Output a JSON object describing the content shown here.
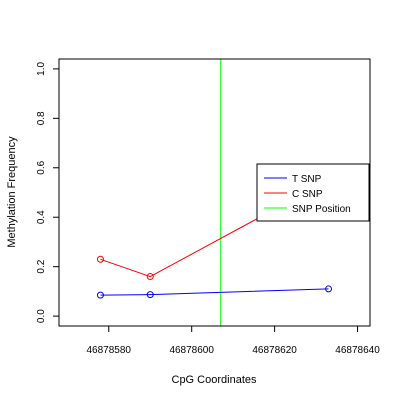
{
  "chart_data": {
    "type": "line",
    "xlabel": "CpG Coordinates",
    "ylabel": "Methylation Frequency",
    "xlim": [
      46878568,
      46878643
    ],
    "ylim": [
      -0.04,
      1.04
    ],
    "x_ticks": [
      {
        "value": 46878580,
        "label": "46878580"
      },
      {
        "value": 46878600,
        "label": "46878600"
      },
      {
        "value": 46878620,
        "label": "46878620"
      },
      {
        "value": 46878640,
        "label": "46878640"
      }
    ],
    "y_ticks": [
      {
        "value": 0.0,
        "label": "0.0"
      },
      {
        "value": 0.2,
        "label": "0.2"
      },
      {
        "value": 0.4,
        "label": "0.4"
      },
      {
        "value": 0.6,
        "label": "0.6"
      },
      {
        "value": 0.8,
        "label": "0.8"
      },
      {
        "value": 1.0,
        "label": "1.0"
      }
    ],
    "series": [
      {
        "name": "T SNP",
        "color": "#0000ff",
        "points": [
          {
            "x": 46878578,
            "y": 0.085
          },
          {
            "x": 46878590,
            "y": 0.087
          },
          {
            "x": 46878633,
            "y": 0.11
          }
        ]
      },
      {
        "name": "C SNP",
        "color": "#ff0000",
        "points": [
          {
            "x": 46878578,
            "y": 0.23
          },
          {
            "x": 46878590,
            "y": 0.16
          },
          {
            "x": 46878633,
            "y": 0.55
          }
        ]
      }
    ],
    "snp_position": {
      "name": "SNP Position",
      "x": 46878607,
      "color": "#00ff00"
    },
    "legend": {
      "placement": "right",
      "entries": [
        {
          "label": "T SNP",
          "color": "#0000ff"
        },
        {
          "label": "C SNP",
          "color": "#ff0000"
        },
        {
          "label": "SNP Position",
          "color": "#00ff00"
        }
      ]
    },
    "grid": false
  }
}
